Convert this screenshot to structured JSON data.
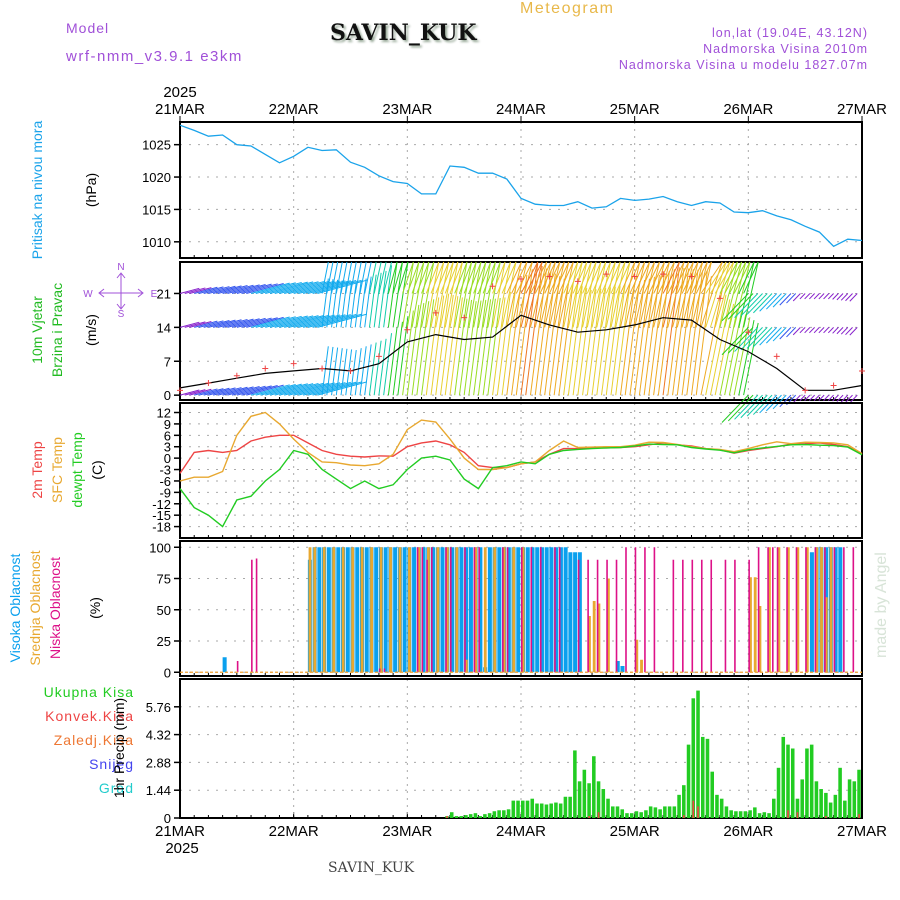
{
  "header": {
    "model_label": "Model",
    "model_version": "wrf-nmm_v3.9.1 e3km",
    "station": "SAVIN_KUK",
    "chart_kind": "Meteogram",
    "lonlat": "lon,lat (19.04E, 43.12N)",
    "elevation": "Nadmorska Visina 2010m",
    "model_elevation": "Nadmorska Visina u modelu 1827.07m"
  },
  "footer": {
    "station": "SAVIN_KUK",
    "credit": "made by Angel"
  },
  "colors": {
    "pressure": "#1aa3ea",
    "wind_title": "#22bb22",
    "temp2m": "#ee4444",
    "sfc": "#e8a830",
    "dewpt": "#22cc22",
    "high_cloud": "#0aa0ee",
    "mid_cloud": "#e8a830",
    "low_cloud": "#dd1188",
    "precip_total": "#22cc22",
    "precip_conv": "#ee4444",
    "precip_frz": "#ee7733",
    "snow": "#4444ee",
    "hail": "#22cccc",
    "compass": "#a050d8"
  },
  "compass": {
    "n": "N",
    "s": "S",
    "w": "W",
    "e": "E"
  },
  "chart_data": [
    {
      "id": "pressure",
      "type": "line",
      "ylabel": "Pritisak na nivou mora",
      "units": "(hPa)",
      "yticks": [
        1010,
        1015,
        1020,
        1025
      ],
      "ylim": [
        1007.5,
        1028.5
      ],
      "x_days": [
        "21MAR",
        "22MAR",
        "23MAR",
        "24MAR",
        "25MAR",
        "26MAR",
        "27MAR"
      ],
      "x_year": "2025",
      "series": [
        {
          "name": "MSLP",
          "x_hours": [
            0,
            3,
            6,
            9,
            12,
            15,
            18,
            21,
            24,
            27,
            30,
            33,
            36,
            39,
            42,
            45,
            48,
            51,
            54,
            57,
            60,
            63,
            66,
            69,
            72,
            75,
            78,
            81,
            84,
            87,
            90,
            93,
            96,
            99,
            102,
            105,
            108,
            111,
            114,
            117,
            120,
            123,
            126,
            129,
            132,
            135,
            138,
            141,
            144
          ],
          "values": [
            1028,
            1027.2,
            1026.3,
            1026.5,
            1025,
            1024.8,
            1023.5,
            1022.2,
            1023.2,
            1024.6,
            1024.1,
            1024.2,
            1022.3,
            1021.5,
            1020.2,
            1019.3,
            1019.0,
            1017.4,
            1017.4,
            1021.7,
            1021.5,
            1020.6,
            1020.6,
            1019.7,
            1016.7,
            1015.8,
            1015.6,
            1015.6,
            1016.2,
            1015.2,
            1015.4,
            1016.7,
            1016.4,
            1016.6,
            1017.0,
            1016.2,
            1015.6,
            1016.2,
            1016.0,
            1014.6,
            1014.5,
            1014.8,
            1014.0,
            1013.4,
            1012.4,
            1011.5,
            1009.3,
            1010.4,
            1010.2
          ]
        }
      ]
    },
    {
      "id": "wind",
      "type": "line",
      "ylabel": "10m Vjetar",
      "ylabel2": "Brzina i Pravac",
      "units": "(m/s)",
      "yticks": [
        0,
        7,
        14,
        21
      ],
      "ylim": [
        -1,
        27.5
      ],
      "series": [
        {
          "name": "speed",
          "x_hours": [
            0,
            6,
            12,
            18,
            24,
            30,
            36,
            42,
            48,
            54,
            60,
            66,
            72,
            78,
            84,
            90,
            96,
            102,
            108,
            114,
            120,
            126,
            132,
            138,
            144
          ],
          "values": [
            1.5,
            2.5,
            3.5,
            4.5,
            5,
            5.5,
            5,
            6.5,
            11,
            12.5,
            11.5,
            12,
            16.5,
            14.5,
            13,
            13.5,
            14.5,
            16,
            15.5,
            11.5,
            9,
            5.5,
            1,
            1,
            2
          ]
        },
        {
          "name": "gust",
          "x_hours": [
            0,
            6,
            12,
            18,
            24,
            30,
            36,
            42,
            48,
            54,
            60,
            66,
            72,
            78,
            84,
            90,
            96,
            102,
            108,
            114,
            120,
            126,
            132,
            138,
            144
          ],
          "values": [
            1,
            2.5,
            4,
            5.5,
            6.5,
            5.5,
            5,
            8,
            13.5,
            17,
            16,
            22.5,
            24,
            24.5,
            23.5,
            25,
            24.5,
            25,
            24.5,
            20,
            13,
            8,
            1,
            2,
            5
          ]
        }
      ],
      "barb_rows": [
        0,
        14,
        21
      ]
    },
    {
      "id": "temperature",
      "type": "line",
      "ylabel": "2m Temp",
      "ylabel2": "SFC Temp",
      "ylabel3": "dewpt Temp",
      "units": "(C)",
      "yticks": [
        12,
        9,
        6,
        3,
        0,
        -3,
        -6,
        -9,
        -12,
        -15,
        -18
      ],
      "ylim": [
        -21,
        14.5
      ],
      "x_hours": [
        0,
        3,
        6,
        9,
        12,
        15,
        18,
        21,
        24,
        27,
        30,
        33,
        36,
        39,
        42,
        45,
        48,
        51,
        54,
        57,
        60,
        63,
        66,
        69,
        72,
        75,
        78,
        81,
        84,
        87,
        90,
        93,
        96,
        99,
        102,
        105,
        108,
        111,
        114,
        117,
        120,
        123,
        126,
        129,
        132,
        135,
        138,
        141,
        144
      ],
      "series": [
        {
          "name": "2m Temp",
          "values": [
            -4,
            1.5,
            2,
            1.5,
            2,
            4.5,
            5.5,
            6,
            6,
            4,
            2,
            1,
            0.5,
            0.3,
            0.6,
            0.5,
            3,
            4,
            4.5,
            3.5,
            1.5,
            -2,
            -2.5,
            -2.5,
            -1.5,
            -1,
            1,
            2.5,
            2.5,
            2.8,
            2.7,
            2.8,
            3,
            3.5,
            4,
            3.5,
            3.2,
            2.5,
            2.2,
            1.3,
            2,
            2.5,
            3,
            3.7,
            3.8,
            4,
            3.6,
            3,
            1
          ]
        },
        {
          "name": "SFC Temp",
          "values": [
            -6,
            -5,
            -5,
            -3.5,
            6,
            11,
            12,
            9,
            5,
            1.5,
            -1,
            -1.2,
            -1.8,
            -2,
            -1.5,
            1,
            7.5,
            10,
            9.5,
            5,
            0,
            -3,
            -3,
            -2.5,
            -1.5,
            -1,
            2,
            4.5,
            2.8,
            2.9,
            3,
            3,
            3.4,
            4.2,
            4.1,
            3.6,
            3,
            2.5,
            2.3,
            1.7,
            2.5,
            3.5,
            4.3,
            3.8,
            4.2,
            4.1,
            4,
            3.5,
            1.2
          ]
        },
        {
          "name": "dewpt Temp",
          "values": [
            -8,
            -13,
            -15,
            -18,
            -11,
            -10,
            -6,
            -3,
            2,
            1,
            -3,
            -5.5,
            -8,
            -6,
            -8,
            -7,
            -3,
            0,
            0.5,
            -0.5,
            -5.5,
            -8,
            -2.5,
            -2,
            -1,
            -1.5,
            1,
            2,
            2.3,
            2.5,
            2.7,
            2.8,
            3.2,
            3.7,
            3.6,
            3.5,
            2.8,
            2.4,
            2.1,
            1.4,
            2.2,
            2.7,
            3.1,
            3.5,
            3.6,
            3.4,
            3.3,
            2.9,
            0.9
          ]
        }
      ]
    },
    {
      "id": "clouds",
      "type": "bar",
      "ylabel": "Visoka Oblacnost",
      "ylabel2": "Srednja Oblacnost",
      "ylabel3": "Niska Oblacnost",
      "units": "(%)",
      "yticks": [
        0,
        25,
        50,
        75,
        100
      ],
      "ylim": [
        -3,
        105
      ],
      "series": [
        {
          "name": "Visoka",
          "x_hours": [
            9,
            27,
            28,
            29,
            30,
            31,
            32,
            33,
            34,
            35,
            36,
            37,
            38,
            39,
            40,
            41,
            42,
            43,
            44,
            45,
            46,
            47,
            48,
            49,
            50,
            51,
            52,
            53,
            54,
            55,
            56,
            57,
            58,
            59,
            60,
            61,
            62,
            63,
            64,
            65,
            66,
            67,
            68,
            69,
            70,
            71,
            72,
            73,
            74,
            75,
            76,
            77,
            78,
            79,
            80,
            81,
            82,
            83,
            84,
            92,
            93,
            133,
            134,
            135,
            136,
            137,
            138,
            139
          ],
          "values": [
            12,
            90,
            100,
            100,
            100,
            100,
            100,
            100,
            100,
            100,
            100,
            100,
            100,
            100,
            100,
            100,
            100,
            100,
            100,
            100,
            100,
            100,
            100,
            100,
            100,
            100,
            100,
            100,
            100,
            100,
            100,
            100,
            100,
            100,
            100,
            100,
            100,
            100,
            4,
            100,
            100,
            100,
            100,
            100,
            100,
            100,
            100,
            100,
            100,
            100,
            100,
            100,
            100,
            100,
            100,
            100,
            96,
            96,
            96,
            9,
            5,
            96,
            100,
            100,
            100,
            100,
            100,
            100
          ]
        },
        {
          "name": "Srednja",
          "x_hours": [
            27,
            28,
            30,
            32,
            34,
            36,
            38,
            40,
            42,
            44,
            46,
            48,
            50,
            52,
            54,
            56,
            58,
            60,
            62,
            64,
            66,
            68,
            70,
            72,
            86,
            87,
            88,
            90,
            96,
            97,
            120,
            121,
            122,
            124,
            126,
            128,
            130,
            132,
            134,
            135,
            136,
            137
          ],
          "values": [
            100,
            100,
            100,
            100,
            100,
            100,
            100,
            100,
            100,
            100,
            100,
            100,
            100,
            100,
            100,
            100,
            100,
            10,
            100,
            100,
            100,
            100,
            100,
            100,
            45,
            57,
            55,
            75,
            26,
            10,
            76,
            76,
            53,
            100,
            100,
            100,
            100,
            100,
            100,
            100,
            60,
            100
          ]
        },
        {
          "name": "Niska",
          "x_hours": [
            12,
            15,
            16,
            42,
            43,
            50,
            51,
            52,
            53,
            56,
            57,
            60,
            62,
            63,
            68,
            69,
            72,
            74,
            76,
            79,
            80,
            84,
            86,
            88,
            90,
            92,
            94,
            96,
            98,
            100,
            104,
            106,
            108,
            110,
            112,
            115,
            117,
            120,
            122,
            124,
            125,
            126,
            128,
            130,
            132,
            134,
            136,
            138,
            140,
            142
          ],
          "values": [
            9,
            90,
            91,
            3,
            3,
            100,
            100,
            90,
            100,
            100,
            100,
            100,
            100,
            100,
            100,
            100,
            100,
            100,
            100,
            100,
            100,
            90,
            90,
            90,
            90,
            90,
            100,
            100,
            100,
            100,
            90,
            90,
            90,
            90,
            90,
            90,
            90,
            90,
            100,
            100,
            100,
            100,
            100,
            100,
            100,
            100,
            100,
            100,
            100,
            100
          ]
        }
      ]
    },
    {
      "id": "precip",
      "type": "bar",
      "ylabel": "1hr Precip",
      "units": "(mm)",
      "legend": [
        "Ukupna Kisa",
        "Konvek.Kisa",
        "Zaledj.Kisa",
        "Snijeg",
        "Grad"
      ],
      "yticks": [
        0,
        1.44,
        2.88,
        4.32,
        5.76
      ],
      "ylim": [
        0,
        7.2
      ],
      "x_hours": [
        56,
        57,
        58,
        59,
        60,
        61,
        62,
        63,
        64,
        65,
        66,
        67,
        68,
        69,
        70,
        71,
        72,
        73,
        74,
        75,
        76,
        77,
        78,
        79,
        80,
        81,
        82,
        83,
        84,
        85,
        86,
        87,
        88,
        89,
        90,
        91,
        92,
        93,
        94,
        95,
        96,
        97,
        98,
        99,
        100,
        101,
        102,
        103,
        104,
        105,
        106,
        107,
        108,
        109,
        110,
        111,
        112,
        113,
        114,
        115,
        116,
        117,
        118,
        119,
        120,
        121,
        122,
        123,
        124,
        125,
        126,
        127,
        128,
        129,
        130,
        131,
        132,
        133,
        134,
        135,
        136,
        137,
        138,
        139,
        140,
        141,
        142,
        143
      ],
      "series": [
        {
          "name": "Ukupna Kisa",
          "values": [
            0.1,
            0.3,
            0.1,
            0.1,
            0.15,
            0.2,
            0.25,
            0.1,
            0.2,
            0.25,
            0.35,
            0.4,
            0.4,
            0.45,
            0.9,
            0.9,
            0.9,
            0.9,
            1.0,
            0.75,
            0.75,
            0.7,
            0.75,
            0.8,
            0.75,
            1.1,
            1.1,
            3.5,
            1.9,
            2.5,
            1.8,
            3.2,
            1.9,
            1.5,
            1.0,
            0.6,
            0.6,
            0.45,
            0.25,
            0.25,
            0.35,
            0.3,
            0.4,
            0.6,
            0.55,
            0.45,
            0.6,
            0.6,
            0.6,
            1.2,
            1.7,
            3.8,
            6.2,
            6.6,
            4.2,
            4.1,
            2.4,
            1.2,
            1.0,
            0.6,
            0.4,
            0.35,
            0.35,
            0.35,
            0.4,
            0.55,
            0.25,
            0.3,
            0.25,
            1.0,
            2.6,
            4.2,
            3.8,
            3.6,
            1.0,
            2.0,
            3.6,
            3.8,
            1.9,
            1.5,
            1.3,
            0.8,
            1.2,
            2.6,
            0.9,
            2.0,
            1.9,
            2.5
          ]
        },
        {
          "name": "Konvek.Kisa",
          "values": [
            0.1,
            0,
            0,
            0,
            0,
            0,
            0,
            0,
            0,
            0,
            0,
            0,
            0,
            0,
            0,
            0,
            0,
            0,
            0,
            0,
            0,
            0,
            0,
            0,
            0,
            0,
            0,
            0,
            0,
            0,
            0.1,
            0,
            0.3,
            0,
            0,
            0,
            0,
            0,
            0,
            0,
            0,
            0,
            0,
            0,
            0,
            0,
            0,
            0,
            0,
            0,
            0.15,
            0,
            0.9,
            0.6,
            0,
            0,
            0,
            0,
            0,
            0,
            0,
            0,
            0,
            0,
            0,
            0,
            0,
            0,
            0,
            0,
            0,
            0,
            0.4,
            0,
            0.3,
            0,
            0,
            0,
            0,
            0,
            0.1,
            0,
            0,
            0,
            0,
            0,
            0,
            0.2
          ]
        }
      ]
    }
  ]
}
